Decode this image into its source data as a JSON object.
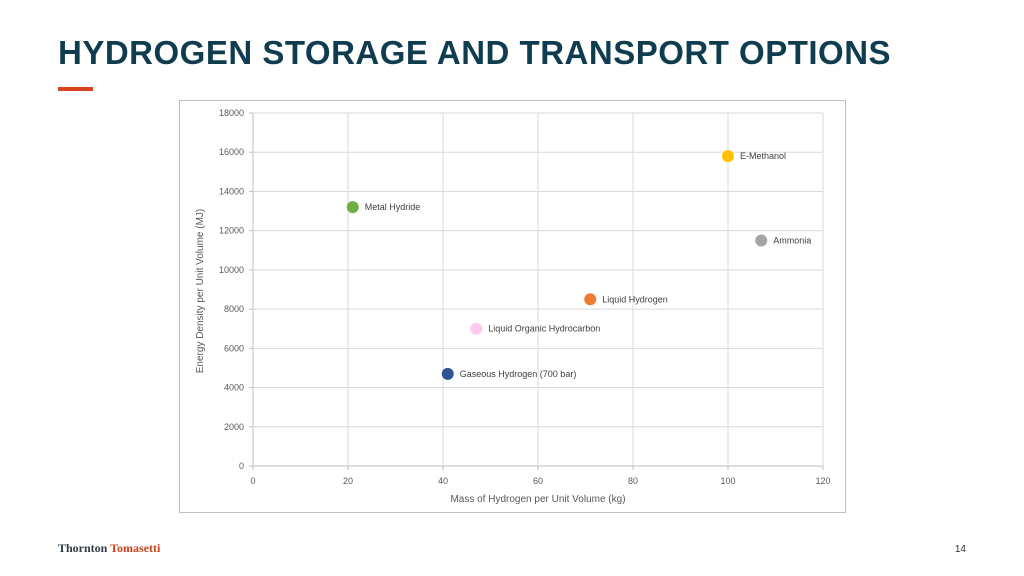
{
  "slide": {
    "title": "HYDROGEN STORAGE AND TRANSPORT OPTIONS",
    "accent_color": "#d9441c",
    "page_number": "14",
    "logo": {
      "word1": "Thornton",
      "word2": "Tomasetti"
    }
  },
  "chart_data": {
    "type": "scatter",
    "title": "",
    "xlabel": "Mass of Hydrogen per Unit Volume (kg)",
    "ylabel": "Energy Density per Unit Volume (MJ)",
    "xlim": [
      0,
      120
    ],
    "ylim": [
      0,
      18000
    ],
    "xticks": [
      0,
      20,
      40,
      60,
      80,
      100,
      120
    ],
    "yticks": [
      0,
      2000,
      4000,
      6000,
      8000,
      10000,
      12000,
      14000,
      16000,
      18000
    ],
    "grid": true,
    "legend": "none",
    "points": [
      {
        "label": "Metal Hydride",
        "x": 21,
        "y": 13200,
        "color": "#70ad47"
      },
      {
        "label": "E-Methanol",
        "x": 100,
        "y": 15800,
        "color": "#ffc000"
      },
      {
        "label": "Ammonia",
        "x": 107,
        "y": 11500,
        "color": "#a5a5a5"
      },
      {
        "label": "Liquid Hydrogen",
        "x": 71,
        "y": 8500,
        "color": "#ed7d31"
      },
      {
        "label": "Liquid Organic Hydrocarbon",
        "x": 47,
        "y": 7000,
        "color": "#ffc8f0"
      },
      {
        "label": "Gaseous Hydrogen (700 bar)",
        "x": 41,
        "y": 4700,
        "color": "#2f5597"
      }
    ]
  }
}
